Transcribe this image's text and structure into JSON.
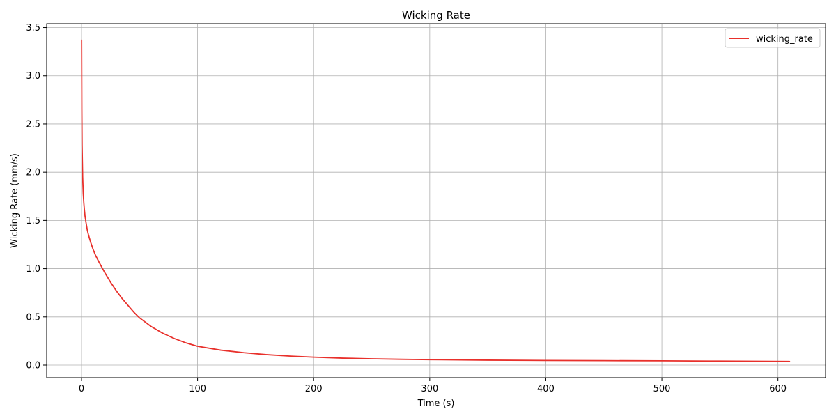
{
  "chart_data": {
    "type": "line",
    "title": "Wicking Rate",
    "xlabel": "Time (s)",
    "ylabel": "Wicking Rate (mm/s)",
    "xlim": [
      -30,
      641
    ],
    "ylim": [
      -0.13,
      3.54
    ],
    "xticks": [
      0,
      100,
      200,
      300,
      400,
      500,
      600
    ],
    "yticks": [
      0.0,
      0.5,
      1.0,
      1.5,
      2.0,
      2.5,
      3.0,
      3.5
    ],
    "xtick_labels": [
      "0",
      "100",
      "200",
      "300",
      "400",
      "500",
      "600"
    ],
    "ytick_labels": [
      "0.0",
      "0.5",
      "1.0",
      "1.5",
      "2.0",
      "2.5",
      "3.0",
      "3.5"
    ],
    "grid": true,
    "legend_position": "top-right",
    "series": [
      {
        "name": "wicking_rate",
        "color": "#e8302b",
        "x": [
          0.1,
          0.3,
          0.5,
          1,
          1.5,
          2,
          2.5,
          3,
          4,
          5,
          6,
          8,
          10,
          12,
          15,
          20,
          25,
          30,
          35,
          40,
          45,
          50,
          60,
          70,
          80,
          90,
          100,
          120,
          140,
          160,
          180,
          200,
          225,
          250,
          275,
          300,
          350,
          400,
          450,
          500,
          550,
          610
        ],
        "y": [
          3.37,
          2.65,
          2.28,
          1.95,
          1.78,
          1.68,
          1.61,
          1.55,
          1.47,
          1.4,
          1.35,
          1.27,
          1.2,
          1.14,
          1.07,
          0.96,
          0.86,
          0.77,
          0.69,
          0.62,
          0.55,
          0.49,
          0.4,
          0.33,
          0.275,
          0.23,
          0.195,
          0.155,
          0.128,
          0.108,
          0.093,
          0.082,
          0.072,
          0.065,
          0.06,
          0.056,
          0.051,
          0.048,
          0.046,
          0.044,
          0.041,
          0.038
        ]
      }
    ]
  }
}
